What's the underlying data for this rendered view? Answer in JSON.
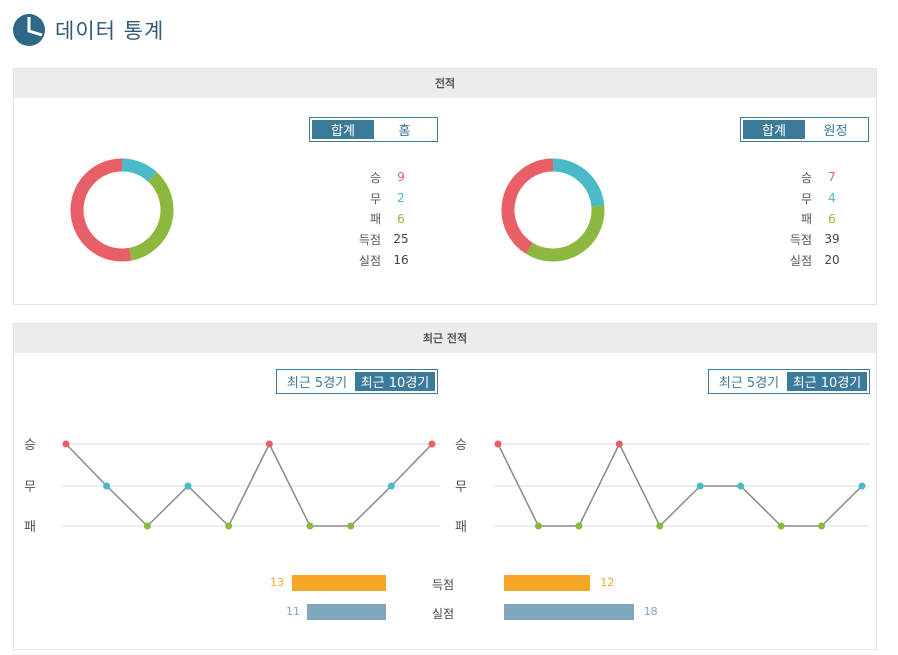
{
  "header": {
    "title": "데이터 통계",
    "icon": "pie-chart-icon"
  },
  "colors": {
    "win": "#e85f67",
    "draw": "#4ab9c8",
    "loss": "#8db83f",
    "goals": "#f7a623",
    "conceded": "#7fa7be",
    "accent": "#3b7a98"
  },
  "record": {
    "title": "전적",
    "left": {
      "tabs": [
        "합계",
        "홈"
      ],
      "active_tab": 0,
      "stats": [
        {
          "label": "승",
          "value": "9"
        },
        {
          "label": "무",
          "value": "2"
        },
        {
          "label": "패",
          "value": "6"
        },
        {
          "label": "득점",
          "value": "25"
        },
        {
          "label": "실점",
          "value": "16"
        }
      ]
    },
    "right": {
      "tabs": [
        "합계",
        "원정"
      ],
      "active_tab": 0,
      "stats": [
        {
          "label": "승",
          "value": "7"
        },
        {
          "label": "무",
          "value": "4"
        },
        {
          "label": "패",
          "value": "6"
        },
        {
          "label": "득점",
          "value": "39"
        },
        {
          "label": "실점",
          "value": "20"
        }
      ]
    }
  },
  "recent": {
    "title": "최근 전적",
    "tabs": [
      "최근 5경기",
      "최근 10경기"
    ],
    "active_tab": 1,
    "y_labels": [
      "승",
      "무",
      "패"
    ],
    "left_results": [
      "승",
      "무",
      "패",
      "무",
      "패",
      "승",
      "패",
      "패",
      "무",
      "승"
    ],
    "right_results": [
      "승",
      "패",
      "패",
      "승",
      "패",
      "무",
      "무",
      "패",
      "패",
      "무"
    ],
    "goals_label": "득점",
    "conceded_label": "실점",
    "left_goals": "13",
    "right_goals": "12",
    "left_conceded": "11",
    "right_conceded": "18"
  },
  "chart_data": [
    {
      "type": "pie",
      "categories": [
        "승",
        "무",
        "패"
      ],
      "values": [
        9,
        2,
        6
      ],
      "title": ""
    },
    {
      "type": "pie",
      "categories": [
        "승",
        "무",
        "패"
      ],
      "values": [
        7,
        4,
        6
      ],
      "title": ""
    },
    {
      "type": "line",
      "categories": [
        "1",
        "2",
        "3",
        "4",
        "5",
        "6",
        "7",
        "8",
        "9",
        "10"
      ],
      "y_categories": [
        "패",
        "무",
        "승"
      ],
      "values": [
        "승",
        "무",
        "패",
        "무",
        "패",
        "승",
        "패",
        "패",
        "무",
        "승"
      ]
    },
    {
      "type": "line",
      "categories": [
        "1",
        "2",
        "3",
        "4",
        "5",
        "6",
        "7",
        "8",
        "9",
        "10"
      ],
      "y_categories": [
        "패",
        "무",
        "승"
      ],
      "values": [
        "승",
        "패",
        "패",
        "승",
        "패",
        "무",
        "무",
        "패",
        "패",
        "무"
      ]
    },
    {
      "type": "bar",
      "categories": [
        "득점",
        "실점"
      ],
      "series": [
        {
          "values": [
            13,
            11
          ]
        },
        {
          "values": [
            12,
            18
          ]
        }
      ]
    }
  ]
}
